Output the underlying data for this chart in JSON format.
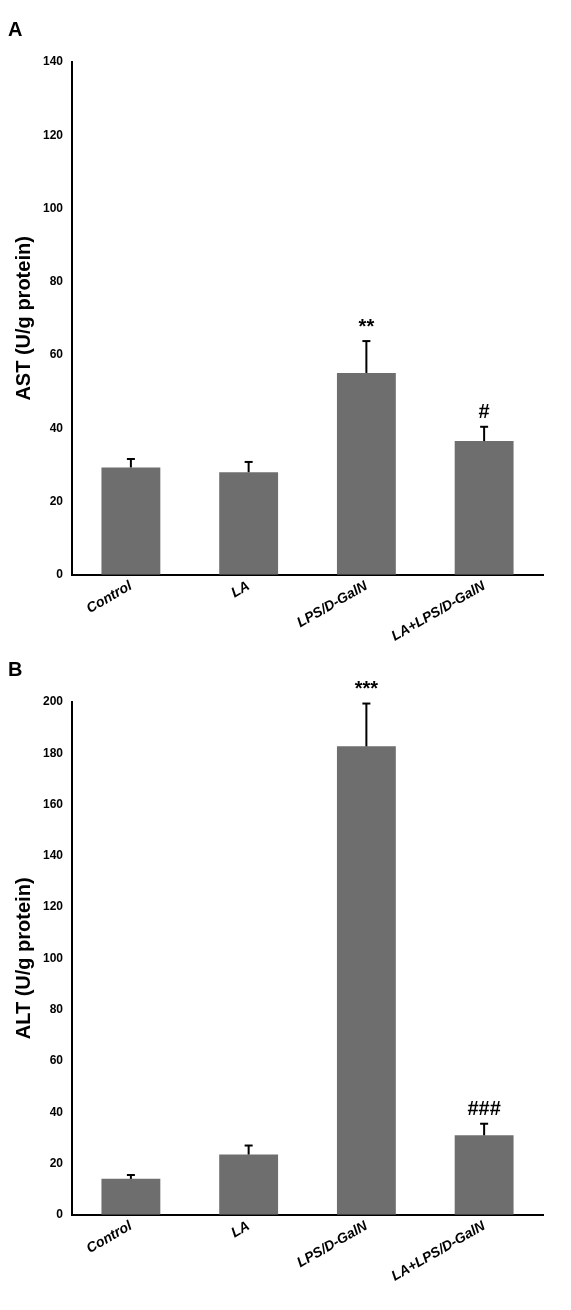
{
  "chart_data": [
    {
      "type": "bar",
      "title": "A",
      "ylabel": "AST (U/g protein)",
      "categories": [
        "Control",
        "LA",
        "LPS/D-GalN",
        "LA+LPS/D-GalN"
      ],
      "values": [
        29.3,
        28,
        55.1,
        36.5
      ],
      "errors": [
        2.3,
        2.8,
        8.7,
        3.9
      ],
      "color": "#6e6e6e",
      "ylim": [
        0,
        140
      ],
      "yticks": [
        0,
        20,
        40,
        60,
        80,
        100,
        120,
        140
      ],
      "grid": false,
      "legend": false,
      "annotations": [
        {
          "text": "**",
          "x": "LPS/D-GalN",
          "y": 63.8
        },
        {
          "text": "#",
          "x": "LA+LPS/D-GalN",
          "y": 40.4
        }
      ]
    },
    {
      "type": "bar",
      "title": "B",
      "ylabel": "ALT (U/g protein)",
      "categories": [
        "Control",
        "LA",
        "LPS/D-GalN",
        "LA+LPS/D-GalN"
      ],
      "values": [
        14,
        23.5,
        182.7,
        31
      ],
      "errors": [
        1.5,
        3.5,
        16.7,
        4.5
      ],
      "color": "#6e6e6e",
      "ylim": [
        0,
        200
      ],
      "yticks": [
        0,
        20,
        40,
        60,
        80,
        100,
        120,
        140,
        160,
        180,
        200
      ],
      "grid": false,
      "legend": false,
      "annotations": [
        {
          "text": "***",
          "x": "LPS/D-GalN",
          "y": 199.4
        },
        {
          "text": "###",
          "x": "LA+LPS/D-GalN",
          "y": 35.5
        }
      ]
    }
  ]
}
